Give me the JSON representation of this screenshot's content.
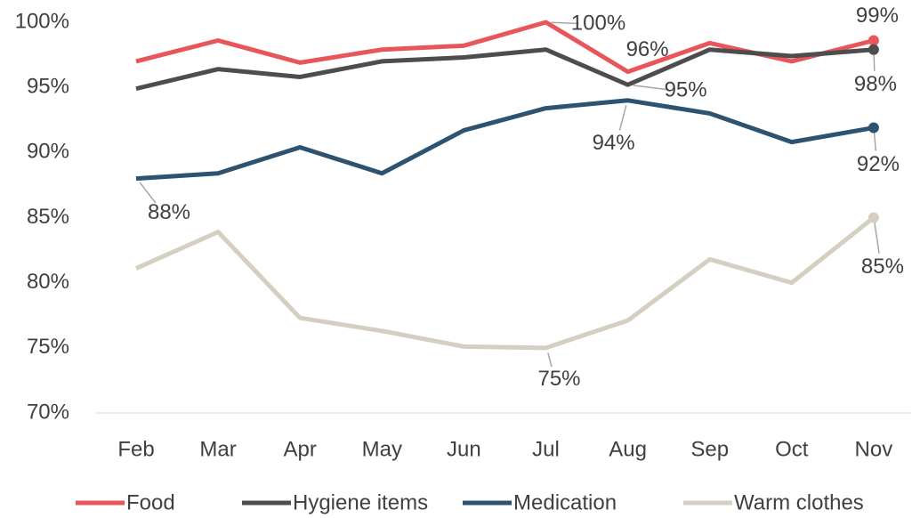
{
  "chart_data": {
    "type": "line",
    "categories": [
      "Feb",
      "Mar",
      "Apr",
      "May",
      "Jun",
      "Jul",
      "Aug",
      "Sep",
      "Oct",
      "Nov"
    ],
    "ylim": [
      70,
      100
    ],
    "yticks": [
      {
        "value": 70,
        "label": "70%"
      },
      {
        "value": 75,
        "label": "75%"
      },
      {
        "value": 80,
        "label": "80%"
      },
      {
        "value": 85,
        "label": "85%"
      },
      {
        "value": 90,
        "label": "90%"
      },
      {
        "value": 95,
        "label": "95%"
      },
      {
        "value": 100,
        "label": "100%"
      }
    ],
    "grid": false,
    "legend": "bottom",
    "series": [
      {
        "name": "Food",
        "color": "#e8565c",
        "values": [
          97.0,
          98.6,
          96.9,
          97.9,
          98.2,
          100,
          96.2,
          98.4,
          97.0,
          98.6
        ],
        "value_labels": [
          null,
          null,
          null,
          null,
          null,
          "100%",
          "96%",
          null,
          null,
          "99%"
        ]
      },
      {
        "name": "Hygiene items",
        "color": "#4d4d4d",
        "values": [
          94.9,
          96.4,
          95.8,
          97.0,
          97.3,
          97.9,
          95.2,
          97.9,
          97.4,
          97.9
        ],
        "value_labels": [
          null,
          null,
          null,
          null,
          null,
          null,
          "95%",
          null,
          null,
          "98%"
        ]
      },
      {
        "name": "Medication",
        "color": "#2e5370",
        "values": [
          88.0,
          88.4,
          90.4,
          88.4,
          91.7,
          93.4,
          94.0,
          93.0,
          90.8,
          91.9
        ],
        "value_labels": [
          "88%",
          null,
          null,
          null,
          null,
          null,
          "94%",
          null,
          null,
          "92%"
        ]
      },
      {
        "name": "Warm clothes",
        "color": "#d4cfc0",
        "values": [
          81.1,
          83.9,
          77.3,
          76.3,
          75.1,
          75.0,
          77.1,
          81.8,
          80.0,
          85.0
        ],
        "value_labels": [
          null,
          null,
          null,
          null,
          null,
          "75%",
          null,
          null,
          null,
          "85%"
        ]
      }
    ]
  }
}
